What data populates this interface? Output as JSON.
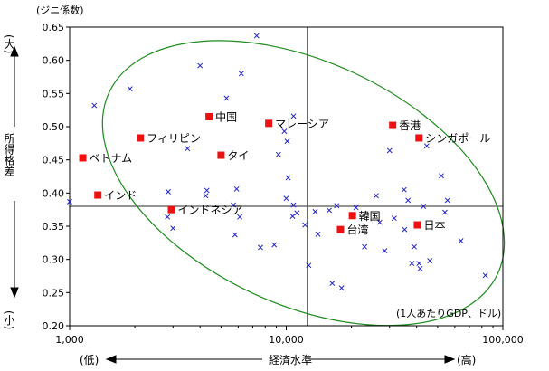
{
  "chart_data": {
    "type": "scatter",
    "title": "",
    "x_scale": "log",
    "xlim": [
      1000,
      100000
    ],
    "ylim": [
      0.2,
      0.65
    ],
    "x_ticks": [
      1000,
      10000,
      100000
    ],
    "x_tick_labels": [
      "1,000",
      "10,000",
      "100,000"
    ],
    "y_ticks": [
      0.2,
      0.25,
      0.3,
      0.35,
      0.4,
      0.45,
      0.5,
      0.55,
      0.6,
      0.65
    ],
    "y_tick_labels": [
      "0.20",
      "0.25",
      "0.30",
      "0.35",
      "0.40",
      "0.45",
      "0.50",
      "0.55",
      "0.60",
      "0.65"
    ],
    "y_unit": "(ジニ係数)",
    "x_unit": "(1人あたりGDP、ドル)",
    "x_axis": {
      "low": "(低)",
      "label": "経済水準",
      "high": "(高)"
    },
    "y_axis": {
      "high": "(大)",
      "label": "所得格差",
      "low": "(小)"
    },
    "reference_lines": {
      "x": 12500,
      "y": 0.38
    },
    "ellipse": {
      "center_x": 12000,
      "center_y": 0.415,
      "color": "#1e8c1e"
    },
    "colors": {
      "highlight": "#ee1111",
      "other": "#2222cc",
      "axis": "#000000",
      "ref_line": "#555555"
    },
    "highlighted": [
      {
        "label": "中国",
        "x": 4400,
        "y": 0.515,
        "label_pos": "right"
      },
      {
        "label": "マレーシア",
        "x": 8300,
        "y": 0.505,
        "label_pos": "right"
      },
      {
        "label": "香港",
        "x": 31000,
        "y": 0.502,
        "label_pos": "right"
      },
      {
        "label": "シンガポール",
        "x": 41000,
        "y": 0.483,
        "label_pos": "right"
      },
      {
        "label": "フィリピン",
        "x": 2120,
        "y": 0.483,
        "label_pos": "right"
      },
      {
        "label": "ベトナム",
        "x": 1150,
        "y": 0.453,
        "label_pos": "right"
      },
      {
        "label": "タイ",
        "x": 5000,
        "y": 0.457,
        "label_pos": "right"
      },
      {
        "label": "インド",
        "x": 1350,
        "y": 0.397,
        "label_pos": "right"
      },
      {
        "label": "インドネシア",
        "x": 2950,
        "y": 0.375,
        "label_pos": "right"
      },
      {
        "label": "韓国",
        "x": 20200,
        "y": 0.366,
        "label_pos": "right"
      },
      {
        "label": "台湾",
        "x": 17800,
        "y": 0.345,
        "label_pos": "right"
      },
      {
        "label": "日本",
        "x": 40300,
        "y": 0.352,
        "label_pos": "right"
      }
    ],
    "others": [
      [
        1300,
        0.532
      ],
      [
        1900,
        0.557
      ],
      [
        4000,
        0.592
      ],
      [
        7300,
        0.637
      ],
      [
        6200,
        0.58
      ],
      [
        5300,
        0.543
      ],
      [
        9800,
        0.493
      ],
      [
        10800,
        0.516
      ],
      [
        10100,
        0.478
      ],
      [
        9200,
        0.458
      ],
      [
        3500,
        0.467
      ],
      [
        5900,
        0.406
      ],
      [
        10200,
        0.423
      ],
      [
        2850,
        0.402
      ],
      [
        4250,
        0.396
      ],
      [
        4300,
        0.404
      ],
      [
        5700,
        0.382
      ],
      [
        6100,
        0.364
      ],
      [
        10000,
        0.392
      ],
      [
        10800,
        0.382
      ],
      [
        10700,
        0.365
      ],
      [
        11200,
        0.37
      ],
      [
        12200,
        0.352
      ],
      [
        12700,
        0.291
      ],
      [
        13600,
        0.372
      ],
      [
        14000,
        0.338
      ],
      [
        15800,
        0.374
      ],
      [
        16300,
        0.264
      ],
      [
        17100,
        0.381
      ],
      [
        18000,
        0.257
      ],
      [
        21000,
        0.378
      ],
      [
        23000,
        0.319
      ],
      [
        26000,
        0.396
      ],
      [
        27000,
        0.356
      ],
      [
        28500,
        0.313
      ],
      [
        30000,
        0.464
      ],
      [
        31500,
        0.362
      ],
      [
        35000,
        0.405
      ],
      [
        35200,
        0.345
      ],
      [
        36500,
        0.389
      ],
      [
        38000,
        0.294
      ],
      [
        39000,
        0.319
      ],
      [
        41000,
        0.294
      ],
      [
        41500,
        0.286
      ],
      [
        44500,
        0.471
      ],
      [
        46000,
        0.298
      ],
      [
        52000,
        0.426
      ],
      [
        54000,
        0.371
      ],
      [
        55500,
        0.389
      ],
      [
        64000,
        0.328
      ],
      [
        83000,
        0.276
      ],
      [
        1000,
        0.387
      ],
      [
        2830,
        0.364
      ],
      [
        3000,
        0.347
      ],
      [
        5800,
        0.337
      ],
      [
        7600,
        0.318
      ],
      [
        8800,
        0.322
      ],
      [
        43000,
        0.38
      ]
    ]
  }
}
